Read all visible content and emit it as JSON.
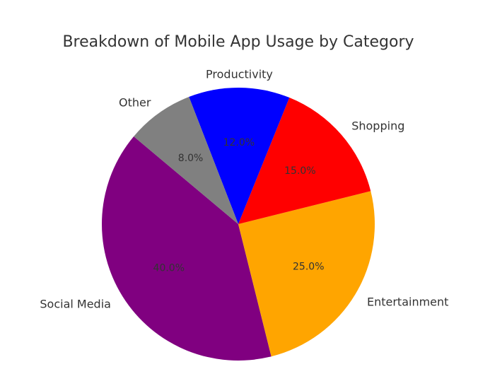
{
  "chart_data": {
    "type": "pie",
    "title": "Breakdown of Mobile App Usage by Category",
    "categories": [
      "Social Media",
      "Entertainment",
      "Shopping",
      "Productivity",
      "Other"
    ],
    "values": [
      40.0,
      25.0,
      15.0,
      12.0,
      8.0
    ],
    "value_labels": [
      "40.0%",
      "25.0%",
      "15.0%",
      "12.0%",
      "8.0%"
    ],
    "colors": [
      "#800080",
      "#FFA500",
      "#FF0000",
      "#0000FF",
      "#808080"
    ],
    "start_angle_deg": 140,
    "direction": "counterclockwise",
    "legend": "none"
  }
}
